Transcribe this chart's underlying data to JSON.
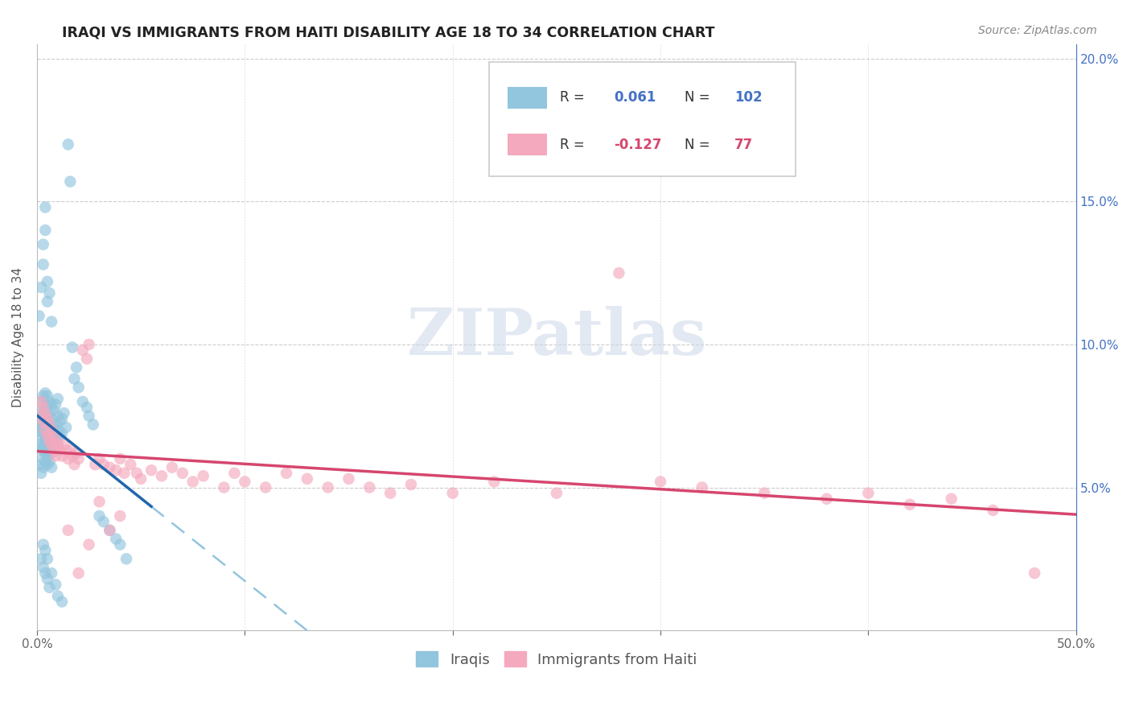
{
  "title": "IRAQI VS IMMIGRANTS FROM HAITI DISABILITY AGE 18 TO 34 CORRELATION CHART",
  "source": "Source: ZipAtlas.com",
  "ylabel": "Disability Age 18 to 34",
  "legend_label_iraqi": "Iraqis",
  "legend_label_haiti": "Immigrants from Haiti",
  "R_iraqi": 0.061,
  "N_iraqi": 102,
  "R_haiti": -0.127,
  "N_haiti": 77,
  "watermark": "ZIPatlas",
  "xmin": 0.0,
  "xmax": 0.5,
  "ymin": 0.0,
  "ymax": 0.205,
  "blue_color": "#92c5de",
  "pink_color": "#f4a9be",
  "blue_line_color": "#2166ac",
  "pink_line_color": "#d6466e",
  "blue_dash_color": "#92c5de",
  "background_color": "#ffffff",
  "grid_color": "#cccccc",
  "right_axis_color": "#4472c4",
  "iraqi_x": [
    0.001,
    0.001,
    0.002,
    0.002,
    0.002,
    0.002,
    0.002,
    0.002,
    0.002,
    0.003,
    0.003,
    0.003,
    0.003,
    0.003,
    0.003,
    0.003,
    0.003,
    0.003,
    0.003,
    0.004,
    0.004,
    0.004,
    0.004,
    0.004,
    0.004,
    0.004,
    0.004,
    0.005,
    0.005,
    0.005,
    0.005,
    0.005,
    0.005,
    0.005,
    0.005,
    0.006,
    0.006,
    0.006,
    0.006,
    0.006,
    0.006,
    0.007,
    0.007,
    0.007,
    0.007,
    0.007,
    0.007,
    0.008,
    0.008,
    0.008,
    0.008,
    0.009,
    0.009,
    0.009,
    0.01,
    0.01,
    0.01,
    0.01,
    0.011,
    0.011,
    0.012,
    0.012,
    0.013,
    0.014,
    0.015,
    0.016,
    0.017,
    0.018,
    0.019,
    0.02,
    0.022,
    0.024,
    0.025,
    0.027,
    0.03,
    0.032,
    0.035,
    0.038,
    0.04,
    0.043,
    0.001,
    0.002,
    0.003,
    0.003,
    0.004,
    0.004,
    0.005,
    0.005,
    0.006,
    0.007,
    0.002,
    0.003,
    0.004,
    0.005,
    0.006,
    0.003,
    0.004,
    0.005,
    0.007,
    0.009,
    0.01,
    0.012
  ],
  "iraqi_y": [
    0.07,
    0.065,
    0.072,
    0.068,
    0.075,
    0.063,
    0.058,
    0.08,
    0.055,
    0.073,
    0.069,
    0.077,
    0.065,
    0.06,
    0.082,
    0.057,
    0.071,
    0.064,
    0.076,
    0.074,
    0.068,
    0.079,
    0.062,
    0.059,
    0.083,
    0.066,
    0.071,
    0.07,
    0.065,
    0.075,
    0.061,
    0.069,
    0.078,
    0.058,
    0.082,
    0.072,
    0.067,
    0.076,
    0.063,
    0.08,
    0.059,
    0.07,
    0.066,
    0.074,
    0.062,
    0.079,
    0.057,
    0.071,
    0.068,
    0.077,
    0.064,
    0.072,
    0.067,
    0.079,
    0.07,
    0.065,
    0.075,
    0.081,
    0.073,
    0.068,
    0.074,
    0.069,
    0.076,
    0.071,
    0.17,
    0.157,
    0.099,
    0.088,
    0.092,
    0.085,
    0.08,
    0.078,
    0.075,
    0.072,
    0.04,
    0.038,
    0.035,
    0.032,
    0.03,
    0.025,
    0.11,
    0.12,
    0.128,
    0.135,
    0.14,
    0.148,
    0.115,
    0.122,
    0.118,
    0.108,
    0.025,
    0.022,
    0.02,
    0.018,
    0.015,
    0.03,
    0.028,
    0.025,
    0.02,
    0.016,
    0.012,
    0.01
  ],
  "haiti_x": [
    0.002,
    0.002,
    0.003,
    0.003,
    0.004,
    0.004,
    0.005,
    0.005,
    0.006,
    0.006,
    0.007,
    0.007,
    0.008,
    0.008,
    0.009,
    0.009,
    0.01,
    0.011,
    0.012,
    0.013,
    0.014,
    0.015,
    0.016,
    0.017,
    0.018,
    0.019,
    0.02,
    0.022,
    0.024,
    0.025,
    0.028,
    0.03,
    0.032,
    0.035,
    0.038,
    0.04,
    0.042,
    0.045,
    0.048,
    0.05,
    0.055,
    0.06,
    0.065,
    0.07,
    0.075,
    0.08,
    0.09,
    0.095,
    0.1,
    0.11,
    0.12,
    0.13,
    0.14,
    0.15,
    0.16,
    0.17,
    0.18,
    0.2,
    0.22,
    0.25,
    0.28,
    0.3,
    0.32,
    0.35,
    0.38,
    0.4,
    0.42,
    0.44,
    0.46,
    0.48,
    0.01,
    0.015,
    0.02,
    0.025,
    0.03,
    0.035,
    0.04
  ],
  "haiti_y": [
    0.08,
    0.075,
    0.078,
    0.073,
    0.076,
    0.07,
    0.074,
    0.068,
    0.072,
    0.066,
    0.07,
    0.065,
    0.068,
    0.063,
    0.066,
    0.061,
    0.065,
    0.063,
    0.061,
    0.065,
    0.063,
    0.06,
    0.063,
    0.061,
    0.058,
    0.062,
    0.06,
    0.098,
    0.095,
    0.1,
    0.058,
    0.06,
    0.058,
    0.057,
    0.056,
    0.06,
    0.055,
    0.058,
    0.055,
    0.053,
    0.056,
    0.054,
    0.057,
    0.055,
    0.052,
    0.054,
    0.05,
    0.055,
    0.052,
    0.05,
    0.055,
    0.053,
    0.05,
    0.053,
    0.05,
    0.048,
    0.051,
    0.048,
    0.052,
    0.048,
    0.125,
    0.052,
    0.05,
    0.048,
    0.046,
    0.048,
    0.044,
    0.046,
    0.042,
    0.02,
    0.065,
    0.035,
    0.02,
    0.03,
    0.045,
    0.035,
    0.04
  ]
}
